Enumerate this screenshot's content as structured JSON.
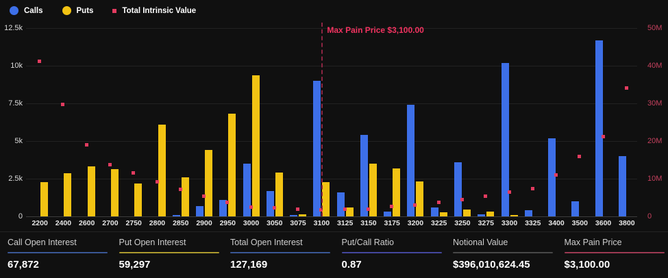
{
  "legend": {
    "items": [
      {
        "label": "Calls",
        "color": "#3D6FE8",
        "shape": "circle"
      },
      {
        "label": "Puts",
        "color": "#F2C313",
        "shape": "circle"
      },
      {
        "label": "Total Intrinsic Value",
        "color": "#E23B5F",
        "shape": "square"
      }
    ]
  },
  "chart_data": {
    "type": "bar",
    "title": "",
    "categories": [
      "2200",
      "2400",
      "2600",
      "2700",
      "2750",
      "2800",
      "2850",
      "2900",
      "2950",
      "3000",
      "3050",
      "3075",
      "3100",
      "3125",
      "3150",
      "3175",
      "3200",
      "3225",
      "3250",
      "3275",
      "3300",
      "3325",
      "3400",
      "3500",
      "3600",
      "3800"
    ],
    "series": [
      {
        "name": "Calls",
        "type": "bar",
        "axis": "left",
        "color": "#3D6FE8",
        "values": [
          0,
          0,
          0,
          0,
          0,
          0,
          100,
          700,
          1100,
          3500,
          1700,
          100,
          9000,
          1600,
          5400,
          300,
          7400,
          600,
          3600,
          150,
          10200,
          400,
          5200,
          1000,
          11700,
          4000
        ]
      },
      {
        "name": "Puts",
        "type": "bar",
        "axis": "left",
        "color": "#F2C313",
        "values": [
          2250,
          2850,
          3300,
          3150,
          2200,
          6100,
          2600,
          4400,
          6800,
          9350,
          2900,
          150,
          2250,
          600,
          3500,
          3200,
          2300,
          250,
          450,
          300,
          100,
          0,
          0,
          0,
          0,
          0
        ]
      },
      {
        "name": "Total Intrinsic Value",
        "type": "scatter",
        "axis": "right",
        "color": "#E23B5F",
        "values": [
          41200000,
          29800000,
          19000000,
          13800000,
          11500000,
          9100000,
          7100000,
          5300000,
          3800000,
          2500000,
          2300000,
          1900000,
          1700000,
          1900000,
          2000000,
          2700000,
          3000000,
          3800000,
          4500000,
          5300000,
          6400000,
          7400000,
          11000000,
          15900000,
          21200000,
          34100000
        ]
      }
    ],
    "left_axis": {
      "ticks": [
        "0",
        "2.5k",
        "5k",
        "7.5k",
        "10k",
        "12.5k"
      ],
      "max": 12500
    },
    "right_axis": {
      "ticks": [
        "0",
        "10M",
        "20M",
        "30M",
        "40M",
        "50M"
      ],
      "max": 50000000
    },
    "annotation": {
      "label": "Max Pain Price $3,100.00",
      "category": "3100",
      "line_color": "#8c2542",
      "text_color": "#f23360"
    },
    "grid": true,
    "legend_position": "top-left"
  },
  "stats": [
    {
      "label": "Call Open Interest",
      "value": "67,872",
      "accent": "#3A5795"
    },
    {
      "label": "Put Open Interest",
      "value": "59,297",
      "accent": "#AC9A2E"
    },
    {
      "label": "Total Open Interest",
      "value": "127,169",
      "accent": "#3A5795"
    },
    {
      "label": "Put/Call Ratio",
      "value": "0.87",
      "accent": "#44479E"
    },
    {
      "label": "Notional Value",
      "value": "$396,010,624.45",
      "accent": "#484848"
    },
    {
      "label": "Max Pain Price",
      "value": "$3,100.00",
      "accent": "#9C3A52"
    }
  ]
}
